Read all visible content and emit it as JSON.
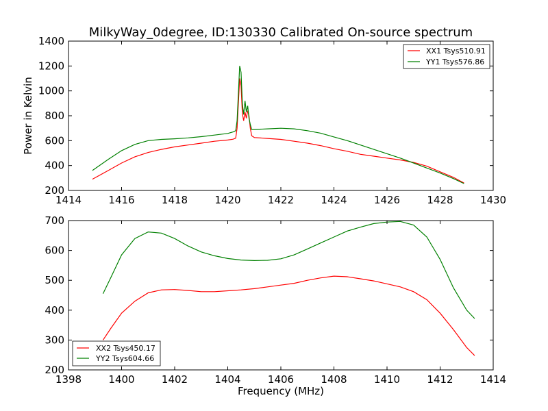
{
  "page": {
    "title": "MilkyWay_0degree, ID:130330 Calibrated On-source spectrum",
    "xlabel": "Frequency (MHz)"
  },
  "chart_data": [
    {
      "type": "line",
      "ylabel": "Power in Kelvin",
      "xlim": [
        1414,
        1430
      ],
      "ylim": [
        200,
        1400
      ],
      "xticks": [
        1414,
        1416,
        1418,
        1420,
        1422,
        1424,
        1426,
        1428,
        1430
      ],
      "yticks": [
        200,
        400,
        600,
        800,
        1000,
        1200,
        1400
      ],
      "grid": false,
      "legend_position": "top-right",
      "series": [
        {
          "name": "XX1 Tsys510.91",
          "color": "#ff0000",
          "x": [
            1414.9,
            1415.5,
            1416.0,
            1416.5,
            1417.0,
            1417.5,
            1418.0,
            1418.5,
            1419.0,
            1419.5,
            1420.0,
            1420.2,
            1420.3,
            1420.35,
            1420.45,
            1420.5,
            1420.55,
            1420.6,
            1420.65,
            1420.7,
            1420.75,
            1420.8,
            1420.85,
            1420.9,
            1421.0,
            1421.5,
            1422.0,
            1422.5,
            1423.0,
            1423.5,
            1424.0,
            1424.5,
            1425.0,
            1425.5,
            1426.0,
            1426.5,
            1427.0,
            1427.5,
            1428.0,
            1428.5,
            1428.9
          ],
          "y": [
            290,
            360,
            420,
            470,
            505,
            530,
            550,
            565,
            580,
            595,
            605,
            612,
            620,
            700,
            1100,
            1040,
            820,
            760,
            830,
            780,
            840,
            800,
            700,
            640,
            625,
            618,
            610,
            595,
            580,
            560,
            535,
            515,
            490,
            475,
            460,
            445,
            425,
            395,
            350,
            305,
            260
          ]
        },
        {
          "name": "YY1 Tsys576.86",
          "color": "#008000",
          "x": [
            1414.9,
            1415.5,
            1416.0,
            1416.5,
            1417.0,
            1417.5,
            1418.0,
            1418.5,
            1419.0,
            1419.5,
            1420.0,
            1420.2,
            1420.3,
            1420.35,
            1420.45,
            1420.5,
            1420.55,
            1420.6,
            1420.65,
            1420.7,
            1420.75,
            1420.8,
            1420.85,
            1420.9,
            1421.0,
            1421.5,
            1422.0,
            1422.5,
            1423.0,
            1423.5,
            1424.0,
            1424.5,
            1425.0,
            1425.5,
            1426.0,
            1426.5,
            1427.0,
            1427.5,
            1428.0,
            1428.5,
            1428.9
          ],
          "y": [
            360,
            450,
            520,
            570,
            600,
            610,
            615,
            622,
            632,
            645,
            658,
            670,
            680,
            760,
            1200,
            1150,
            900,
            810,
            920,
            830,
            880,
            780,
            730,
            690,
            690,
            695,
            700,
            695,
            680,
            660,
            630,
            600,
            565,
            530,
            495,
            460,
            420,
            380,
            340,
            295,
            255
          ]
        }
      ]
    },
    {
      "type": "line",
      "ylabel": "",
      "xlim": [
        1398,
        1414
      ],
      "ylim": [
        200,
        700
      ],
      "xticks": [
        1398,
        1400,
        1402,
        1404,
        1406,
        1408,
        1410,
        1412,
        1414
      ],
      "yticks": [
        200,
        300,
        400,
        500,
        600,
        700
      ],
      "grid": false,
      "legend_position": "bottom-left",
      "series": [
        {
          "name": "XX2 Tsys450.17",
          "color": "#ff0000",
          "x": [
            1399.3,
            1399.6,
            1400.0,
            1400.5,
            1401.0,
            1401.5,
            1402.0,
            1402.5,
            1403.0,
            1403.5,
            1404.0,
            1404.5,
            1405.0,
            1405.5,
            1406.0,
            1406.5,
            1407.0,
            1407.5,
            1408.0,
            1408.5,
            1409.0,
            1409.5,
            1410.0,
            1410.5,
            1411.0,
            1411.5,
            1412.0,
            1412.5,
            1413.0,
            1413.3
          ],
          "y": [
            300,
            340,
            390,
            430,
            458,
            468,
            469,
            466,
            462,
            462,
            465,
            468,
            472,
            478,
            484,
            490,
            500,
            508,
            514,
            512,
            505,
            498,
            488,
            478,
            462,
            435,
            390,
            335,
            275,
            248
          ]
        },
        {
          "name": "YY2 Tsys604.66",
          "color": "#008000",
          "x": [
            1399.3,
            1399.6,
            1400.0,
            1400.5,
            1401.0,
            1401.5,
            1402.0,
            1402.5,
            1403.0,
            1403.5,
            1404.0,
            1404.5,
            1405.0,
            1405.5,
            1406.0,
            1406.5,
            1407.0,
            1407.5,
            1408.0,
            1408.5,
            1409.0,
            1409.5,
            1410.0,
            1410.5,
            1411.0,
            1411.5,
            1412.0,
            1412.5,
            1413.0,
            1413.3
          ],
          "y": [
            455,
            510,
            585,
            640,
            662,
            658,
            640,
            615,
            595,
            582,
            573,
            568,
            566,
            567,
            572,
            585,
            605,
            625,
            645,
            665,
            678,
            690,
            695,
            697,
            685,
            645,
            570,
            475,
            400,
            372
          ]
        }
      ]
    }
  ]
}
